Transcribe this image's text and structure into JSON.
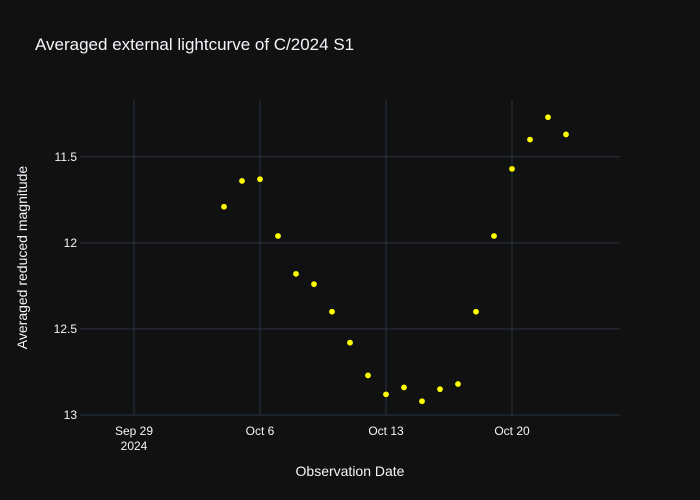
{
  "chart_data": {
    "type": "scatter",
    "title": "Averaged external lightcurve of C/2024 S1",
    "xlabel": "Observation Date",
    "ylabel": "Averaged reduced magnitude",
    "y_reversed": true,
    "xlim": [
      "2024-09-26",
      "2024-10-26"
    ],
    "ylim": [
      13.0,
      11.17
    ],
    "x_ticks": [
      {
        "date": "2024-09-29",
        "label": "Sep 29",
        "sublabel": "2024"
      },
      {
        "date": "2024-10-06",
        "label": "Oct 6",
        "sublabel": ""
      },
      {
        "date": "2024-10-13",
        "label": "Oct 13",
        "sublabel": ""
      },
      {
        "date": "2024-10-20",
        "label": "Oct 20",
        "sublabel": ""
      }
    ],
    "y_ticks": [
      {
        "value": 11.5,
        "label": "11.5"
      },
      {
        "value": 12.0,
        "label": "12"
      },
      {
        "value": 12.5,
        "label": "12.5"
      },
      {
        "value": 13.0,
        "label": "13"
      }
    ],
    "grid": true,
    "marker_color": "#ffff00",
    "background": "#111111",
    "gridcolor": "#283442",
    "points": [
      {
        "x": "2024-10-04",
        "y": 11.79
      },
      {
        "x": "2024-10-05",
        "y": 11.64
      },
      {
        "x": "2024-10-06",
        "y": 11.63
      },
      {
        "x": "2024-10-07",
        "y": 11.96
      },
      {
        "x": "2024-10-08",
        "y": 12.18
      },
      {
        "x": "2024-10-09",
        "y": 12.24
      },
      {
        "x": "2024-10-10",
        "y": 12.4
      },
      {
        "x": "2024-10-11",
        "y": 12.58
      },
      {
        "x": "2024-10-12",
        "y": 12.77
      },
      {
        "x": "2024-10-13",
        "y": 12.88
      },
      {
        "x": "2024-10-14",
        "y": 12.84
      },
      {
        "x": "2024-10-15",
        "y": 12.92
      },
      {
        "x": "2024-10-16",
        "y": 12.85
      },
      {
        "x": "2024-10-17",
        "y": 12.82
      },
      {
        "x": "2024-10-18",
        "y": 12.4
      },
      {
        "x": "2024-10-19",
        "y": 11.96
      },
      {
        "x": "2024-10-20",
        "y": 11.57
      },
      {
        "x": "2024-10-21",
        "y": 11.4
      },
      {
        "x": "2024-10-22",
        "y": 11.27
      },
      {
        "x": "2024-10-23",
        "y": 11.37
      }
    ]
  }
}
